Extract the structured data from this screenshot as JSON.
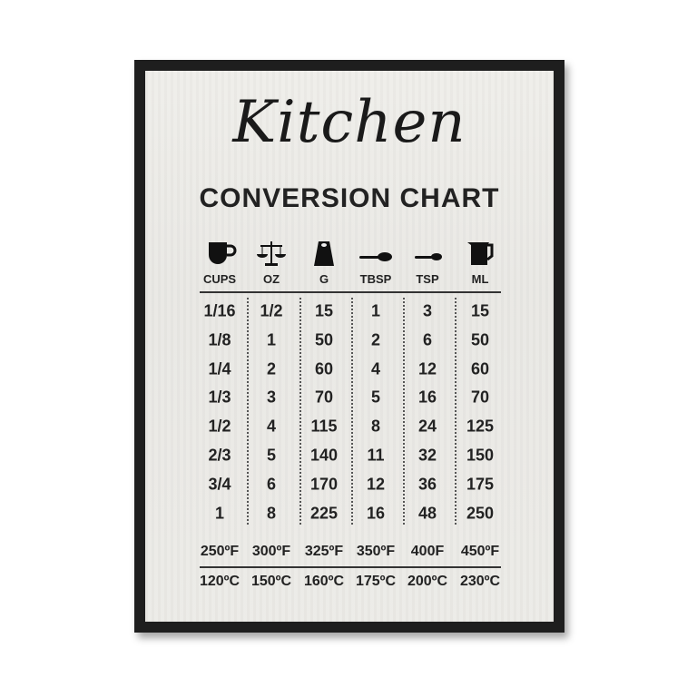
{
  "title_script": "Kitchen",
  "title": "CONVERSION CHART",
  "columns": [
    {
      "label": "CUPS",
      "icon": "mug-icon"
    },
    {
      "label": "OZ",
      "icon": "scale-icon"
    },
    {
      "label": "G",
      "icon": "weight-icon"
    },
    {
      "label": "TBSP",
      "icon": "tablespoon-icon"
    },
    {
      "label": "TSP",
      "icon": "teaspoon-icon"
    },
    {
      "label": "ML",
      "icon": "measuring-jug-icon"
    }
  ],
  "rows": [
    [
      "1/16",
      "1/2",
      "15",
      "1",
      "3",
      "15"
    ],
    [
      "1/8",
      "1",
      "50",
      "2",
      "6",
      "50"
    ],
    [
      "1/4",
      "2",
      "60",
      "4",
      "12",
      "60"
    ],
    [
      "1/3",
      "3",
      "70",
      "5",
      "16",
      "70"
    ],
    [
      "1/2",
      "4",
      "115",
      "8",
      "24",
      "125"
    ],
    [
      "2/3",
      "5",
      "140",
      "11",
      "32",
      "150"
    ],
    [
      "3/4",
      "6",
      "170",
      "12",
      "36",
      "175"
    ],
    [
      "1",
      "8",
      "225",
      "16",
      "48",
      "250"
    ]
  ],
  "fahrenheit": [
    "250ºF",
    "300ºF",
    "325ºF",
    "350ºF",
    "400F",
    "450ºF"
  ],
  "celsius": [
    "120ºC",
    "150ºC",
    "160ºC",
    "175ºC",
    "200ºC",
    "230ºC"
  ],
  "colors": {
    "frame": "#1e1e1e",
    "mat": "#ecebe7",
    "ink": "#222222"
  }
}
